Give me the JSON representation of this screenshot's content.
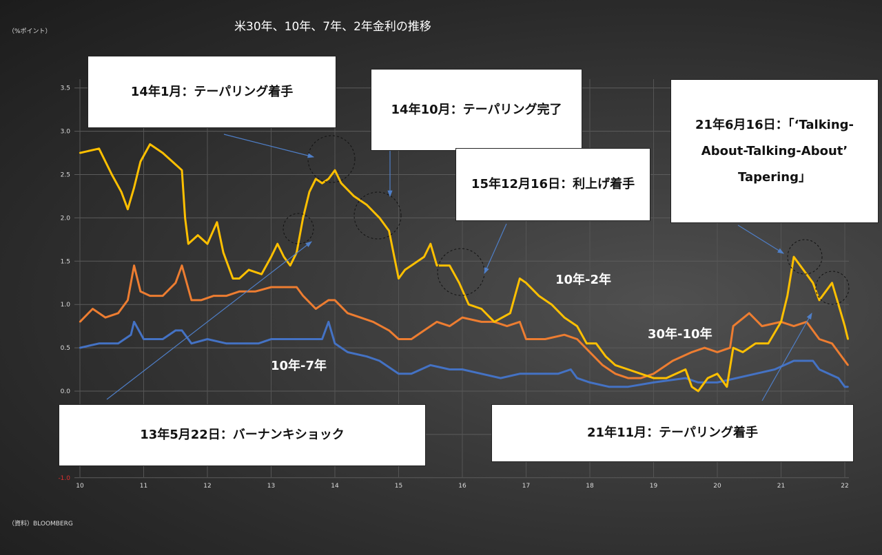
{
  "title": "米30年、10年、7年、2年金利の推移",
  "unit_label": "（%ポイント）",
  "source": "（資料）BLOOMBERG",
  "annotations": [
    "14年1月：テーパリング着手",
    "14年10月：テーパリング完了",
    "15年12月16日：利上げ着手",
    "21年6月16日：「‘Talking-About-Talking-About’ Tapering」",
    "13年5月22日：バーナンキショック",
    "21年11月：テーパリング着手"
  ],
  "chart_data": {
    "type": "line",
    "title": "米30年、10年、7年、2年金利の推移",
    "ylabel": "（%ポイント）",
    "xlabel": "",
    "xlim": [
      2010,
      2022.05
    ],
    "ylim": [
      -1.0,
      3.5
    ],
    "x_ticks": [
      "10",
      "11",
      "12",
      "13",
      "14",
      "15",
      "16",
      "17",
      "18",
      "19",
      "20",
      "21",
      "22"
    ],
    "y_ticks": [
      "-1.0",
      "-0.5",
      "0.0",
      "0.5",
      "1.0",
      "1.5",
      "2.0",
      "2.5",
      "3.0",
      "3.5"
    ],
    "negative_tick_color": "#e03030",
    "grid": true,
    "series": [
      {
        "name": "10年-2年",
        "color": "#ffc000",
        "x": [
          2010.0,
          2010.3,
          2010.5,
          2010.65,
          2010.75,
          2010.85,
          2010.95,
          2011.1,
          2011.3,
          2011.45,
          2011.6,
          2011.65,
          2011.7,
          2011.85,
          2012.0,
          2012.15,
          2012.25,
          2012.4,
          2012.5,
          2012.65,
          2012.85,
          2013.0,
          2013.1,
          2013.2,
          2013.3,
          2013.4,
          2013.5,
          2013.6,
          2013.7,
          2013.8,
          2013.9,
          2014.0,
          2014.1,
          2014.3,
          2014.5,
          2014.7,
          2014.85,
          2015.0,
          2015.1,
          2015.2,
          2015.4,
          2015.5,
          2015.6,
          2015.8,
          2015.95,
          2016.1,
          2016.3,
          2016.5,
          2016.75,
          2016.9,
          2017.0,
          2017.2,
          2017.4,
          2017.6,
          2017.8,
          2017.95,
          2018.1,
          2018.25,
          2018.4,
          2018.6,
          2018.8,
          2019.0,
          2019.2,
          2019.5,
          2019.6,
          2019.7,
          2019.85,
          2020.0,
          2020.15,
          2020.25,
          2020.4,
          2020.6,
          2020.8,
          2021.0,
          2021.1,
          2021.2,
          2021.35,
          2021.5,
          2021.6,
          2021.8,
          2021.9,
          2022.0,
          2022.05
        ],
        "values": [
          2.75,
          2.8,
          2.5,
          2.3,
          2.1,
          2.35,
          2.65,
          2.85,
          2.75,
          2.65,
          2.55,
          2.0,
          1.7,
          1.8,
          1.7,
          1.95,
          1.6,
          1.3,
          1.3,
          1.4,
          1.35,
          1.55,
          1.7,
          1.55,
          1.45,
          1.6,
          2.0,
          2.3,
          2.45,
          2.4,
          2.45,
          2.55,
          2.4,
          2.25,
          2.15,
          2.0,
          1.85,
          1.3,
          1.4,
          1.45,
          1.55,
          1.7,
          1.45,
          1.45,
          1.25,
          1.0,
          0.95,
          0.8,
          0.9,
          1.3,
          1.25,
          1.1,
          1.0,
          0.85,
          0.75,
          0.55,
          0.55,
          0.4,
          0.3,
          0.25,
          0.2,
          0.15,
          0.15,
          0.25,
          0.05,
          0.0,
          0.15,
          0.2,
          0.05,
          0.5,
          0.45,
          0.55,
          0.55,
          0.8,
          1.1,
          1.55,
          1.4,
          1.25,
          1.05,
          1.25,
          1.0,
          0.75,
          0.6
        ]
      },
      {
        "name": "30年-10年",
        "color": "#ed7d31",
        "x": [
          2010.0,
          2010.2,
          2010.4,
          2010.6,
          2010.75,
          2010.85,
          2010.95,
          2011.1,
          2011.3,
          2011.5,
          2011.6,
          2011.75,
          2011.9,
          2012.1,
          2012.3,
          2012.5,
          2012.75,
          2013.0,
          2013.2,
          2013.4,
          2013.5,
          2013.7,
          2013.9,
          2014.0,
          2014.2,
          2014.4,
          2014.6,
          2014.85,
          2015.0,
          2015.2,
          2015.4,
          2015.6,
          2015.8,
          2016.0,
          2016.3,
          2016.5,
          2016.7,
          2016.9,
          2017.0,
          2017.3,
          2017.6,
          2017.8,
          2018.0,
          2018.2,
          2018.4,
          2018.6,
          2018.8,
          2019.0,
          2019.3,
          2019.6,
          2019.8,
          2020.0,
          2020.2,
          2020.25,
          2020.5,
          2020.7,
          2021.0,
          2021.2,
          2021.4,
          2021.6,
          2021.8,
          2022.0,
          2022.05
        ],
        "values": [
          0.8,
          0.95,
          0.85,
          0.9,
          1.05,
          1.45,
          1.15,
          1.1,
          1.1,
          1.25,
          1.45,
          1.05,
          1.05,
          1.1,
          1.1,
          1.15,
          1.15,
          1.2,
          1.2,
          1.2,
          1.1,
          0.95,
          1.05,
          1.05,
          0.9,
          0.85,
          0.8,
          0.7,
          0.6,
          0.6,
          0.7,
          0.8,
          0.75,
          0.85,
          0.8,
          0.8,
          0.75,
          0.8,
          0.6,
          0.6,
          0.65,
          0.6,
          0.45,
          0.3,
          0.2,
          0.15,
          0.15,
          0.2,
          0.35,
          0.45,
          0.5,
          0.45,
          0.5,
          0.75,
          0.9,
          0.75,
          0.8,
          0.75,
          0.8,
          0.6,
          0.55,
          0.35,
          0.3
        ]
      },
      {
        "name": "10年-7年",
        "color": "#4472c4",
        "x": [
          2010.0,
          2010.3,
          2010.6,
          2010.8,
          2010.85,
          2011.0,
          2011.3,
          2011.5,
          2011.6,
          2011.75,
          2012.0,
          2012.3,
          2012.5,
          2012.8,
          2013.0,
          2013.3,
          2013.6,
          2013.8,
          2013.9,
          2014.0,
          2014.2,
          2014.5,
          2014.7,
          2015.0,
          2015.2,
          2015.5,
          2015.8,
          2016.0,
          2016.3,
          2016.6,
          2016.9,
          2017.2,
          2017.5,
          2017.7,
          2017.8,
          2018.0,
          2018.3,
          2018.6,
          2019.0,
          2019.5,
          2019.7,
          2020.0,
          2020.3,
          2020.6,
          2020.9,
          2021.2,
          2021.5,
          2021.6,
          2021.9,
          2022.0,
          2022.05
        ],
        "values": [
          0.5,
          0.55,
          0.55,
          0.65,
          0.8,
          0.6,
          0.6,
          0.7,
          0.7,
          0.55,
          0.6,
          0.55,
          0.55,
          0.55,
          0.6,
          0.6,
          0.6,
          0.6,
          0.8,
          0.55,
          0.45,
          0.4,
          0.35,
          0.2,
          0.2,
          0.3,
          0.25,
          0.25,
          0.2,
          0.15,
          0.2,
          0.2,
          0.2,
          0.25,
          0.15,
          0.1,
          0.05,
          0.05,
          0.1,
          0.15,
          0.1,
          0.1,
          0.15,
          0.2,
          0.25,
          0.35,
          0.35,
          0.25,
          0.15,
          0.05,
          0.05
        ]
      }
    ]
  }
}
